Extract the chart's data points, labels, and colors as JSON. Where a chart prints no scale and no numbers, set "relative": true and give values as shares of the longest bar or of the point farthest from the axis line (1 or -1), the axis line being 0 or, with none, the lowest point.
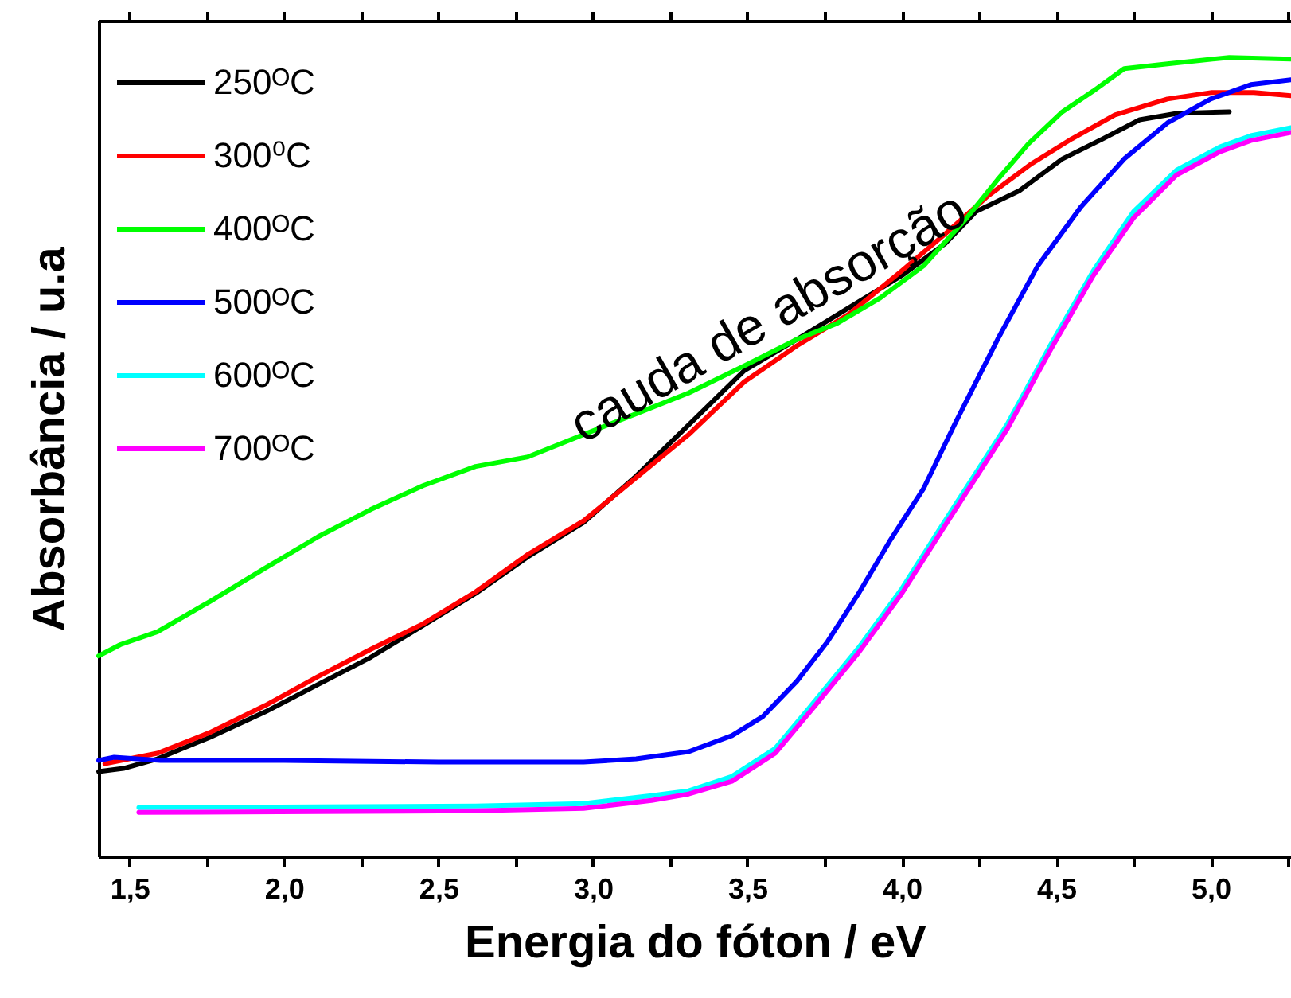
{
  "chart_data": {
    "type": "line",
    "xlabel": "Energia do fóton / eV",
    "ylabel": "Absorbância / u.a",
    "relative": true,
    "legend": "top left",
    "line_style": "solid",
    "xlim": [
      1.4,
      5.26
    ],
    "xticks": [
      {
        "value": 1.5,
        "label": "1,5"
      },
      {
        "value": 1.75,
        "label": null
      },
      {
        "value": 2.0,
        "label": "2,0"
      },
      {
        "value": 2.25,
        "label": null
      },
      {
        "value": 2.5,
        "label": "2,5"
      },
      {
        "value": 2.75,
        "label": null
      },
      {
        "value": 3.0,
        "label": "3,0"
      },
      {
        "value": 3.25,
        "label": null
      },
      {
        "value": 3.5,
        "label": "3,5"
      },
      {
        "value": 3.75,
        "label": null
      },
      {
        "value": 4.0,
        "label": "4,0"
      },
      {
        "value": 4.25,
        "label": null
      },
      {
        "value": 4.5,
        "label": "4,5"
      },
      {
        "value": 4.75,
        "label": null
      },
      {
        "value": 5.0,
        "label": "5,0"
      },
      {
        "value": 5.25,
        "label": null
      }
    ],
    "annotations": [
      "cauda de absorção"
    ],
    "series": [
      {
        "name": "250ᴼC",
        "color": "#000000",
        "x": [
          1.4,
          1.48,
          1.59,
          1.76,
          1.94,
          2.11,
          2.28,
          2.45,
          2.62,
          2.79,
          2.97,
          3.14,
          3.31,
          3.49,
          3.66,
          3.83,
          4.0,
          4.14,
          4.24,
          4.38,
          4.52,
          4.65,
          4.77,
          4.89,
          5.06
        ],
        "values": [
          0.106,
          0.11,
          0.122,
          0.149,
          0.181,
          0.215,
          0.249,
          0.289,
          0.329,
          0.375,
          0.418,
          0.476,
          0.54,
          0.608,
          0.647,
          0.687,
          0.727,
          0.767,
          0.807,
          0.833,
          0.873,
          0.898,
          0.922,
          0.93,
          0.932
        ]
      },
      {
        "name": "300⁰C",
        "color": "#ff0000",
        "x": [
          1.42,
          1.59,
          1.76,
          1.94,
          2.11,
          2.28,
          2.45,
          2.62,
          2.79,
          2.97,
          3.14,
          3.31,
          3.49,
          3.66,
          3.83,
          4.0,
          4.14,
          4.28,
          4.42,
          4.55,
          4.69,
          4.86,
          5.0,
          5.14,
          5.26
        ],
        "values": [
          0.116,
          0.129,
          0.155,
          0.189,
          0.225,
          0.259,
          0.291,
          0.331,
          0.378,
          0.42,
          0.474,
          0.528,
          0.594,
          0.639,
          0.679,
          0.733,
          0.779,
          0.827,
          0.867,
          0.898,
          0.928,
          0.948,
          0.956,
          0.956,
          0.952
        ]
      },
      {
        "name": "400ᴼC",
        "color": "#00ff00",
        "x": [
          1.4,
          1.47,
          1.59,
          1.76,
          1.94,
          2.11,
          2.28,
          2.45,
          2.62,
          2.79,
          2.97,
          3.14,
          3.31,
          3.49,
          3.66,
          3.79,
          3.93,
          4.07,
          4.21,
          4.31,
          4.41,
          4.52,
          4.62,
          4.72,
          4.86,
          5.06,
          5.26
        ],
        "values": [
          0.251,
          0.265,
          0.281,
          0.319,
          0.361,
          0.4,
          0.434,
          0.464,
          0.488,
          0.5,
          0.528,
          0.554,
          0.58,
          0.614,
          0.647,
          0.667,
          0.699,
          0.739,
          0.799,
          0.847,
          0.892,
          0.932,
          0.958,
          0.986,
          0.992,
          1.0,
          0.998
        ]
      },
      {
        "name": "500ᴼC",
        "color": "#0000ff",
        "x": [
          1.4,
          1.45,
          1.6,
          2.0,
          2.5,
          2.97,
          3.14,
          3.31,
          3.45,
          3.55,
          3.66,
          3.76,
          3.86,
          3.96,
          4.07,
          4.17,
          4.31,
          4.44,
          4.58,
          4.72,
          4.86,
          5.0,
          5.13,
          5.26
        ],
        "values": [
          0.12,
          0.124,
          0.12,
          0.12,
          0.118,
          0.118,
          0.122,
          0.131,
          0.151,
          0.175,
          0.219,
          0.269,
          0.329,
          0.394,
          0.46,
          0.54,
          0.647,
          0.739,
          0.813,
          0.873,
          0.918,
          0.948,
          0.966,
          0.972
        ]
      },
      {
        "name": "600ᴼC",
        "color": "#00ffff",
        "x": [
          1.53,
          2.11,
          2.62,
          2.97,
          3.19,
          3.31,
          3.45,
          3.59,
          3.72,
          3.86,
          4.0,
          4.13,
          4.34,
          4.48,
          4.62,
          4.75,
          4.89,
          5.03,
          5.13,
          5.26
        ],
        "values": [
          0.061,
          0.062,
          0.063,
          0.066,
          0.076,
          0.082,
          0.1,
          0.135,
          0.195,
          0.261,
          0.335,
          0.414,
          0.54,
          0.639,
          0.733,
          0.807,
          0.859,
          0.888,
          0.902,
          0.912
        ]
      },
      {
        "name": "700ᴼC",
        "color": "#ff00ff",
        "x": [
          1.53,
          2.11,
          2.62,
          2.97,
          3.19,
          3.31,
          3.45,
          3.59,
          3.72,
          3.86,
          4.0,
          4.13,
          4.34,
          4.48,
          4.62,
          4.75,
          4.89,
          5.03,
          5.13,
          5.26
        ],
        "values": [
          0.055,
          0.056,
          0.057,
          0.06,
          0.07,
          0.078,
          0.094,
          0.129,
          0.189,
          0.255,
          0.329,
          0.408,
          0.534,
          0.633,
          0.727,
          0.799,
          0.853,
          0.882,
          0.896,
          0.906
        ]
      }
    ]
  }
}
